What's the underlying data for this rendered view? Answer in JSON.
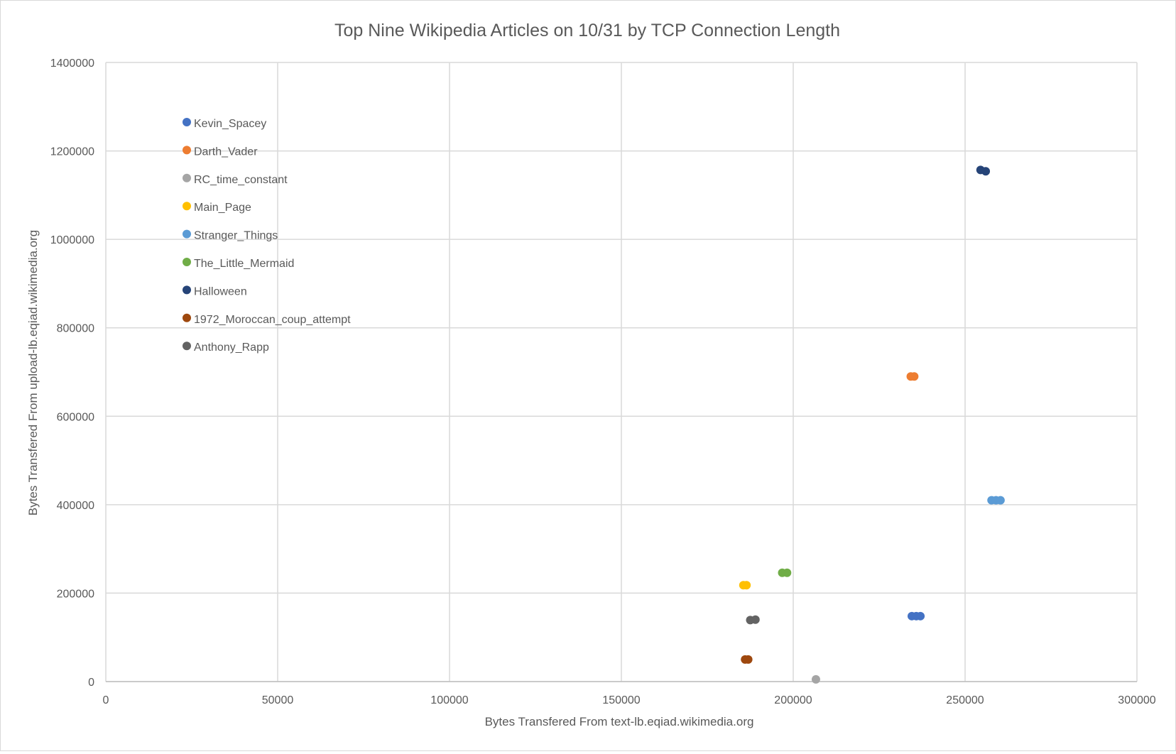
{
  "chart_data": {
    "type": "scatter",
    "title": "Top Nine Wikipedia Articles on 10/31 by TCP Connection Length",
    "xlabel": "Bytes Transfered From text-lb.eqiad.wikimedia.org",
    "ylabel": "Bytes Transfered From upload-lb.eqiad.wikimedia.org",
    "xlim": [
      0,
      300000
    ],
    "ylim": [
      0,
      1400000
    ],
    "x_ticks": [
      "0",
      "50000",
      "100000",
      "150000",
      "200000",
      "250000",
      "300000"
    ],
    "y_ticks": [
      "0",
      "200000",
      "400000",
      "600000",
      "800000",
      "1000000",
      "1200000",
      "1400000"
    ],
    "grid": true,
    "legend_position": "top-left inside plot",
    "series": [
      {
        "name": "Kevin_Spacey",
        "color": "#4472C4",
        "points": [
          [
            234500,
            148000
          ],
          [
            235800,
            148000
          ],
          [
            237000,
            148000
          ]
        ]
      },
      {
        "name": "Darth_Vader",
        "color": "#ED7D31",
        "points": [
          [
            234200,
            690000
          ],
          [
            235200,
            690000
          ]
        ]
      },
      {
        "name": "RC_time_constant",
        "color": "#A5A5A5",
        "points": [
          [
            206600,
            5000
          ]
        ]
      },
      {
        "name": "Main_Page",
        "color": "#FFC000",
        "points": [
          [
            185500,
            218000
          ],
          [
            186400,
            218000
          ]
        ]
      },
      {
        "name": "Stranger_Things",
        "color": "#5B9BD5",
        "points": [
          [
            257700,
            410000
          ],
          [
            259000,
            410000
          ],
          [
            260300,
            410000
          ]
        ]
      },
      {
        "name": "The_Little_Mermaid",
        "color": "#70AD47",
        "points": [
          [
            196800,
            246000
          ],
          [
            198200,
            246000
          ]
        ]
      },
      {
        "name": "Halloween",
        "color": "#264478",
        "points": [
          [
            254500,
            1157000
          ],
          [
            256000,
            1154000
          ]
        ]
      },
      {
        "name": "1972_Moroccan_coup_attempt",
        "color": "#9E480E",
        "points": [
          [
            186000,
            50000
          ],
          [
            186900,
            50000
          ]
        ]
      },
      {
        "name": "Anthony_Rapp",
        "color": "#636363",
        "points": [
          [
            187500,
            139000
          ],
          [
            189000,
            140000
          ]
        ]
      }
    ]
  }
}
